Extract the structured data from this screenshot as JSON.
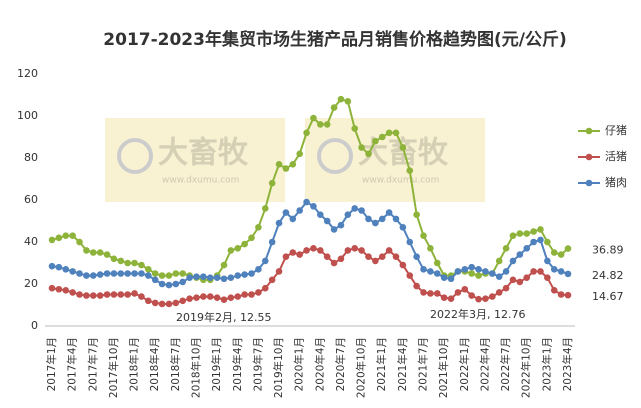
{
  "chart_data": {
    "type": "line",
    "title": "2017-2023年集贸市场生猪产品月销售价格趋势图(元/公斤)",
    "categories": [
      "2017年1月",
      null,
      null,
      "2017年4月",
      null,
      null,
      "2017年7月",
      null,
      null,
      "2017年10月",
      null,
      null,
      "2018年1月",
      null,
      null,
      "2018年4月",
      null,
      null,
      "2018年7月",
      null,
      null,
      "2018年10月",
      null,
      null,
      "2019年1月",
      null,
      null,
      "2019年4月",
      null,
      null,
      "2019年7月",
      null,
      null,
      "2019年10月",
      null,
      null,
      "2020年1月",
      null,
      null,
      "2020年4月",
      null,
      null,
      "2020年7月",
      null,
      null,
      "2020年10月",
      null,
      null,
      "2021年1月",
      null,
      null,
      "2021年4月",
      null,
      null,
      "2021年7月",
      null,
      null,
      "2021年10月",
      null,
      null,
      "2022年1月",
      null,
      null,
      "2022年4月",
      null,
      null,
      "2022年7月",
      null,
      null,
      "2022年10月",
      null,
      null,
      "2023年1月",
      null,
      null,
      "2023年4月"
    ],
    "series": [
      {
        "name": "仔猪",
        "color": "#8db33a",
        "values": [
          41,
          42,
          43,
          43,
          40,
          36,
          35,
          35,
          34,
          32,
          31,
          30,
          30,
          29,
          27,
          25,
          24,
          24,
          25,
          25,
          24,
          23,
          22,
          22,
          24,
          29,
          36,
          37,
          39,
          42,
          47,
          56,
          68,
          77,
          75,
          77,
          82,
          92,
          99,
          96,
          96,
          104,
          108,
          107,
          94,
          85,
          82,
          88,
          90,
          92,
          92,
          85,
          74,
          53,
          43,
          37,
          30,
          24,
          24,
          26,
          26,
          25,
          24,
          25,
          25,
          31,
          37,
          43,
          44,
          44,
          45,
          46,
          40,
          35,
          34,
          36.89
        ]
      },
      {
        "name": "活猪",
        "color": "#c0504d",
        "values": [
          18,
          17.5,
          17,
          16,
          15,
          14.5,
          14.5,
          14.5,
          15,
          15,
          15,
          15,
          15.5,
          14,
          12,
          11,
          10.5,
          10.5,
          11,
          12,
          13,
          13.5,
          14,
          14,
          13.5,
          12.55,
          13.5,
          14,
          15,
          15,
          16,
          18,
          22,
          26,
          33,
          35,
          34,
          36,
          37,
          36,
          33,
          30,
          32,
          36,
          37,
          36,
          33,
          31,
          33,
          36,
          33,
          29,
          24,
          19,
          16,
          15.5,
          15.5,
          13.5,
          13,
          16,
          17.5,
          14.5,
          12.76,
          13,
          14,
          16,
          18,
          22,
          21,
          23,
          26,
          26,
          23,
          17,
          15,
          14.67
        ]
      },
      {
        "name": "猪肉",
        "color": "#4f81bd",
        "values": [
          28.5,
          28,
          27,
          26,
          25,
          24,
          24,
          24.5,
          25,
          25,
          25,
          25,
          25,
          25,
          24,
          22,
          20,
          19.5,
          20,
          21,
          23,
          23.5,
          23.5,
          23,
          23,
          22.5,
          23,
          24,
          24.5,
          25,
          27,
          31,
          40,
          49,
          54,
          51,
          55,
          59,
          57,
          53,
          50,
          46,
          48,
          53,
          56,
          55,
          51,
          49,
          51,
          54,
          51,
          47,
          40,
          33,
          27,
          26,
          25,
          23,
          22.5,
          26,
          27,
          28,
          27,
          26,
          25,
          23.5,
          26,
          31,
          34,
          37,
          40,
          41,
          31,
          27,
          26,
          24.82
        ]
      }
    ],
    "annotations": [
      "2019年2月, 12.55",
      "2022年3月, 12.76"
    ],
    "watermark": "大畜牧",
    "watermark_url": "www.dxumu.com",
    "ylim": [
      0,
      120
    ],
    "yticks": [
      0,
      20,
      40,
      60,
      80,
      100,
      120
    ],
    "grid": false,
    "legend": "right"
  }
}
